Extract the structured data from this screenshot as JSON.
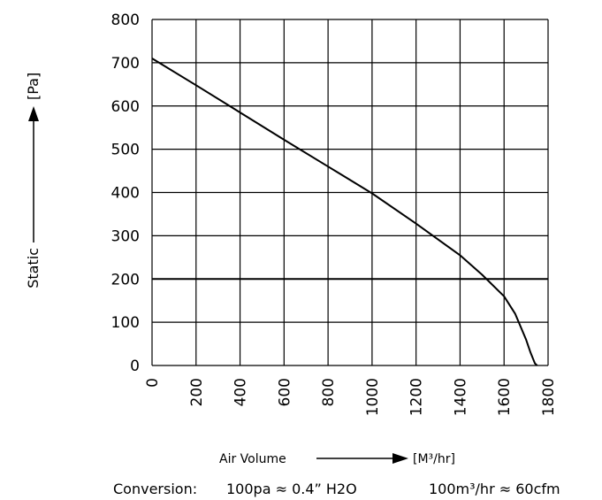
{
  "chart_data": {
    "type": "line",
    "title": "",
    "xlabel": "Air Volume",
    "xunit": "[M³/hr]",
    "ylabel": "Static",
    "yunit": "[Pa]",
    "xlim": [
      0,
      1800
    ],
    "ylim": [
      0,
      800
    ],
    "xticks": [
      0,
      200,
      400,
      600,
      800,
      1000,
      1200,
      1400,
      1600,
      1800
    ],
    "yticks": [
      0,
      100,
      200,
      300,
      400,
      500,
      600,
      700,
      800
    ],
    "grid": true,
    "reference_line_y": 200,
    "series": [
      {
        "x": [
          0,
          200,
          400,
          600,
          800,
          1000,
          1200,
          1400,
          1500,
          1600,
          1650,
          1700,
          1720,
          1740,
          1750
        ],
        "y": [
          710,
          648,
          585,
          522,
          460,
          398,
          328,
          255,
          210,
          160,
          120,
          60,
          30,
          5,
          0
        ]
      }
    ]
  },
  "conversion": {
    "label": "Conversion:",
    "pressure": "100pa ≈ 0.4” H2O",
    "flow": "100m³/hr ≈ 60cfm"
  }
}
